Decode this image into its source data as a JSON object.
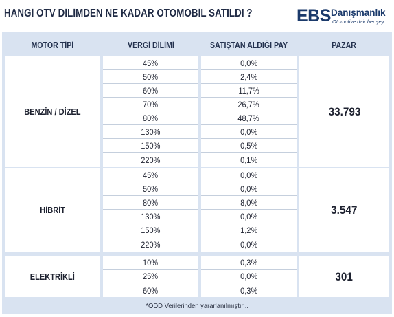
{
  "title": "HANGİ ÖTV DİLİMDEN NE KADAR OTOMOBİL SATILDI ?",
  "logo": {
    "mark": "EBS",
    "name": "Danışmanlık",
    "tagline": "Otomotive dair her şey..."
  },
  "headers": {
    "motor_tipi": "MOTOR TİPİ",
    "vergi_dilimi": "VERGİ DİLİMİ",
    "pay": "SATIŞTAN ALDIĞI PAY",
    "pazar": "PAZAR"
  },
  "groups": [
    {
      "name": "BENZİN / DİZEL",
      "pazar": "33.793",
      "rows": [
        {
          "dilim": "45%",
          "pay": "0,0%"
        },
        {
          "dilim": "50%",
          "pay": "2,4%"
        },
        {
          "dilim": "60%",
          "pay": "11,7%"
        },
        {
          "dilim": "70%",
          "pay": "26,7%"
        },
        {
          "dilim": "80%",
          "pay": "48,7%"
        },
        {
          "dilim": "130%",
          "pay": "0,0%"
        },
        {
          "dilim": "150%",
          "pay": "0,5%"
        },
        {
          "dilim": "220%",
          "pay": "0,1%"
        }
      ]
    },
    {
      "name": "HİBRİT",
      "pazar": "3.547",
      "rows": [
        {
          "dilim": "45%",
          "pay": "0,0%"
        },
        {
          "dilim": "50%",
          "pay": "0,0%"
        },
        {
          "dilim": "80%",
          "pay": "8,0%"
        },
        {
          "dilim": "130%",
          "pay": "0,0%"
        },
        {
          "dilim": "150%",
          "pay": "1,2%"
        },
        {
          "dilim": "220%",
          "pay": "0,0%"
        }
      ]
    },
    {
      "name": "ELEKTRİKLİ",
      "pazar": "301",
      "rows": [
        {
          "dilim": "10%",
          "pay": "0,3%"
        },
        {
          "dilim": "25%",
          "pay": "0,0%"
        },
        {
          "dilim": "60%",
          "pay": "0,3%"
        }
      ]
    }
  ],
  "footnote": "*ODD Verilerinden yararlanılmıştır..."
}
